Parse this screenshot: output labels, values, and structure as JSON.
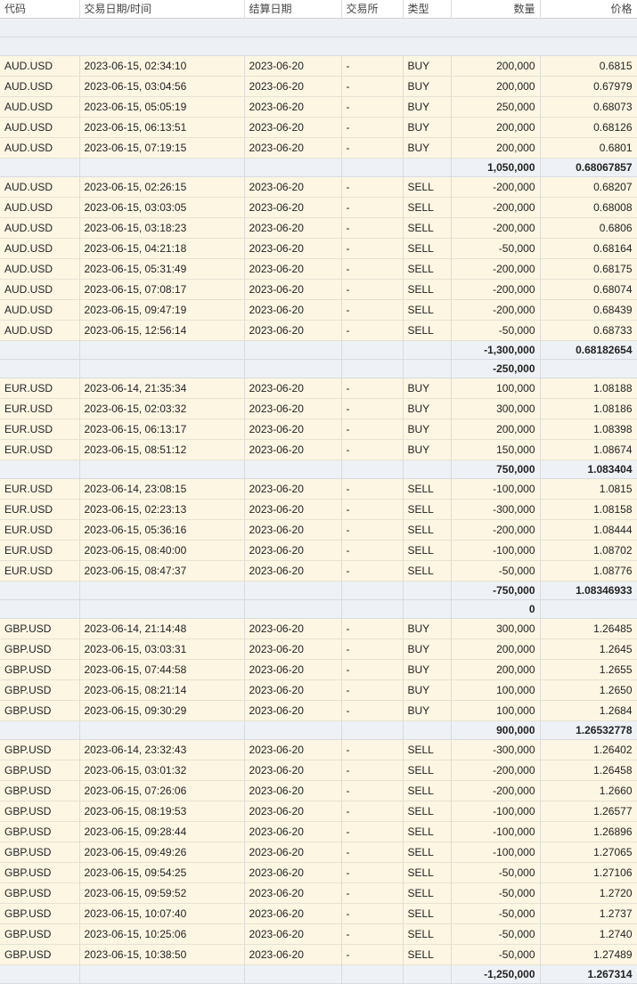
{
  "headers": {
    "symbol": "代码",
    "datetime": "交易日期/时间",
    "settle": "结算日期",
    "exchange": "交易所",
    "type": "类型",
    "qty": "数量",
    "price": "价格"
  },
  "rows": [
    {
      "k": "blank"
    },
    {
      "k": "blank"
    },
    {
      "k": "trade",
      "sym": "AUD.USD",
      "dt": "2023-06-15, 02:34:10",
      "settle": "2023-06-20",
      "ex": "-",
      "type": "BUY",
      "qty": "200,000",
      "price": "0.6815"
    },
    {
      "k": "trade",
      "sym": "AUD.USD",
      "dt": "2023-06-15, 03:04:56",
      "settle": "2023-06-20",
      "ex": "-",
      "type": "BUY",
      "qty": "200,000",
      "price": "0.67979"
    },
    {
      "k": "trade",
      "sym": "AUD.USD",
      "dt": "2023-06-15, 05:05:19",
      "settle": "2023-06-20",
      "ex": "-",
      "type": "BUY",
      "qty": "250,000",
      "price": "0.68073"
    },
    {
      "k": "trade",
      "sym": "AUD.USD",
      "dt": "2023-06-15, 06:13:51",
      "settle": "2023-06-20",
      "ex": "-",
      "type": "BUY",
      "qty": "200,000",
      "price": "0.68126"
    },
    {
      "k": "trade",
      "sym": "AUD.USD",
      "dt": "2023-06-15, 07:19:15",
      "settle": "2023-06-20",
      "ex": "-",
      "type": "BUY",
      "qty": "200,000",
      "price": "0.6801"
    },
    {
      "k": "sub",
      "qty": "1,050,000",
      "price": "0.68067857"
    },
    {
      "k": "trade",
      "sym": "AUD.USD",
      "dt": "2023-06-15, 02:26:15",
      "settle": "2023-06-20",
      "ex": "-",
      "type": "SELL",
      "qty": "-200,000",
      "price": "0.68207"
    },
    {
      "k": "trade",
      "sym": "AUD.USD",
      "dt": "2023-06-15, 03:03:05",
      "settle": "2023-06-20",
      "ex": "-",
      "type": "SELL",
      "qty": "-200,000",
      "price": "0.68008"
    },
    {
      "k": "trade",
      "sym": "AUD.USD",
      "dt": "2023-06-15, 03:18:23",
      "settle": "2023-06-20",
      "ex": "-",
      "type": "SELL",
      "qty": "-200,000",
      "price": "0.6806"
    },
    {
      "k": "trade",
      "sym": "AUD.USD",
      "dt": "2023-06-15, 04:21:18",
      "settle": "2023-06-20",
      "ex": "-",
      "type": "SELL",
      "qty": "-50,000",
      "price": "0.68164"
    },
    {
      "k": "trade",
      "sym": "AUD.USD",
      "dt": "2023-06-15, 05:31:49",
      "settle": "2023-06-20",
      "ex": "-",
      "type": "SELL",
      "qty": "-200,000",
      "price": "0.68175"
    },
    {
      "k": "trade",
      "sym": "AUD.USD",
      "dt": "2023-06-15, 07:08:17",
      "settle": "2023-06-20",
      "ex": "-",
      "type": "SELL",
      "qty": "-200,000",
      "price": "0.68074"
    },
    {
      "k": "trade",
      "sym": "AUD.USD",
      "dt": "2023-06-15, 09:47:19",
      "settle": "2023-06-20",
      "ex": "-",
      "type": "SELL",
      "qty": "-200,000",
      "price": "0.68439"
    },
    {
      "k": "trade",
      "sym": "AUD.USD",
      "dt": "2023-06-15, 12:56:14",
      "settle": "2023-06-20",
      "ex": "-",
      "type": "SELL",
      "qty": "-50,000",
      "price": "0.68733"
    },
    {
      "k": "sub",
      "qty": "-1,300,000",
      "price": "0.68182654"
    },
    {
      "k": "net",
      "qty": "-250,000"
    },
    {
      "k": "trade",
      "sym": "EUR.USD",
      "dt": "2023-06-14, 21:35:34",
      "settle": "2023-06-20",
      "ex": "-",
      "type": "BUY",
      "qty": "100,000",
      "price": "1.08188"
    },
    {
      "k": "trade",
      "sym": "EUR.USD",
      "dt": "2023-06-15, 02:03:32",
      "settle": "2023-06-20",
      "ex": "-",
      "type": "BUY",
      "qty": "300,000",
      "price": "1.08186"
    },
    {
      "k": "trade",
      "sym": "EUR.USD",
      "dt": "2023-06-15, 06:13:17",
      "settle": "2023-06-20",
      "ex": "-",
      "type": "BUY",
      "qty": "200,000",
      "price": "1.08398"
    },
    {
      "k": "trade",
      "sym": "EUR.USD",
      "dt": "2023-06-15, 08:51:12",
      "settle": "2023-06-20",
      "ex": "-",
      "type": "BUY",
      "qty": "150,000",
      "price": "1.08674"
    },
    {
      "k": "sub",
      "qty": "750,000",
      "price": "1.083404"
    },
    {
      "k": "trade",
      "sym": "EUR.USD",
      "dt": "2023-06-14, 23:08:15",
      "settle": "2023-06-20",
      "ex": "-",
      "type": "SELL",
      "qty": "-100,000",
      "price": "1.0815"
    },
    {
      "k": "trade",
      "sym": "EUR.USD",
      "dt": "2023-06-15, 02:23:13",
      "settle": "2023-06-20",
      "ex": "-",
      "type": "SELL",
      "qty": "-300,000",
      "price": "1.08158"
    },
    {
      "k": "trade",
      "sym": "EUR.USD",
      "dt": "2023-06-15, 05:36:16",
      "settle": "2023-06-20",
      "ex": "-",
      "type": "SELL",
      "qty": "-200,000",
      "price": "1.08444"
    },
    {
      "k": "trade",
      "sym": "EUR.USD",
      "dt": "2023-06-15, 08:40:00",
      "settle": "2023-06-20",
      "ex": "-",
      "type": "SELL",
      "qty": "-100,000",
      "price": "1.08702"
    },
    {
      "k": "trade",
      "sym": "EUR.USD",
      "dt": "2023-06-15, 08:47:37",
      "settle": "2023-06-20",
      "ex": "-",
      "type": "SELL",
      "qty": "-50,000",
      "price": "1.08776"
    },
    {
      "k": "sub",
      "qty": "-750,000",
      "price": "1.08346933"
    },
    {
      "k": "net",
      "qty": "0"
    },
    {
      "k": "trade",
      "sym": "GBP.USD",
      "dt": "2023-06-14, 21:14:48",
      "settle": "2023-06-20",
      "ex": "-",
      "type": "BUY",
      "qty": "300,000",
      "price": "1.26485"
    },
    {
      "k": "trade",
      "sym": "GBP.USD",
      "dt": "2023-06-15, 03:03:31",
      "settle": "2023-06-20",
      "ex": "-",
      "type": "BUY",
      "qty": "200,000",
      "price": "1.2645"
    },
    {
      "k": "trade",
      "sym": "GBP.USD",
      "dt": "2023-06-15, 07:44:58",
      "settle": "2023-06-20",
      "ex": "-",
      "type": "BUY",
      "qty": "200,000",
      "price": "1.2655"
    },
    {
      "k": "trade",
      "sym": "GBP.USD",
      "dt": "2023-06-15, 08:21:14",
      "settle": "2023-06-20",
      "ex": "-",
      "type": "BUY",
      "qty": "100,000",
      "price": "1.2650"
    },
    {
      "k": "trade",
      "sym": "GBP.USD",
      "dt": "2023-06-15, 09:30:29",
      "settle": "2023-06-20",
      "ex": "-",
      "type": "BUY",
      "qty": "100,000",
      "price": "1.2684"
    },
    {
      "k": "sub",
      "qty": "900,000",
      "price": "1.26532778"
    },
    {
      "k": "trade",
      "sym": "GBP.USD",
      "dt": "2023-06-14, 23:32:43",
      "settle": "2023-06-20",
      "ex": "-",
      "type": "SELL",
      "qty": "-300,000",
      "price": "1.26402"
    },
    {
      "k": "trade",
      "sym": "GBP.USD",
      "dt": "2023-06-15, 03:01:32",
      "settle": "2023-06-20",
      "ex": "-",
      "type": "SELL",
      "qty": "-200,000",
      "price": "1.26458"
    },
    {
      "k": "trade",
      "sym": "GBP.USD",
      "dt": "2023-06-15, 07:26:06",
      "settle": "2023-06-20",
      "ex": "-",
      "type": "SELL",
      "qty": "-200,000",
      "price": "1.2660"
    },
    {
      "k": "trade",
      "sym": "GBP.USD",
      "dt": "2023-06-15, 08:19:53",
      "settle": "2023-06-20",
      "ex": "-",
      "type": "SELL",
      "qty": "-100,000",
      "price": "1.26577"
    },
    {
      "k": "trade",
      "sym": "GBP.USD",
      "dt": "2023-06-15, 09:28:44",
      "settle": "2023-06-20",
      "ex": "-",
      "type": "SELL",
      "qty": "-100,000",
      "price": "1.26896"
    },
    {
      "k": "trade",
      "sym": "GBP.USD",
      "dt": "2023-06-15, 09:49:26",
      "settle": "2023-06-20",
      "ex": "-",
      "type": "SELL",
      "qty": "-100,000",
      "price": "1.27065"
    },
    {
      "k": "trade",
      "sym": "GBP.USD",
      "dt": "2023-06-15, 09:54:25",
      "settle": "2023-06-20",
      "ex": "-",
      "type": "SELL",
      "qty": "-50,000",
      "price": "1.27106"
    },
    {
      "k": "trade",
      "sym": "GBP.USD",
      "dt": "2023-06-15, 09:59:52",
      "settle": "2023-06-20",
      "ex": "-",
      "type": "SELL",
      "qty": "-50,000",
      "price": "1.2720"
    },
    {
      "k": "trade",
      "sym": "GBP.USD",
      "dt": "2023-06-15, 10:07:40",
      "settle": "2023-06-20",
      "ex": "-",
      "type": "SELL",
      "qty": "-50,000",
      "price": "1.2737"
    },
    {
      "k": "trade",
      "sym": "GBP.USD",
      "dt": "2023-06-15, 10:25:06",
      "settle": "2023-06-20",
      "ex": "-",
      "type": "SELL",
      "qty": "-50,000",
      "price": "1.2740"
    },
    {
      "k": "trade",
      "sym": "GBP.USD",
      "dt": "2023-06-15, 10:38:50",
      "settle": "2023-06-20",
      "ex": "-",
      "type": "SELL",
      "qty": "-50,000",
      "price": "1.27489"
    },
    {
      "k": "sub",
      "qty": "-1,250,000",
      "price": "1.267314"
    }
  ]
}
